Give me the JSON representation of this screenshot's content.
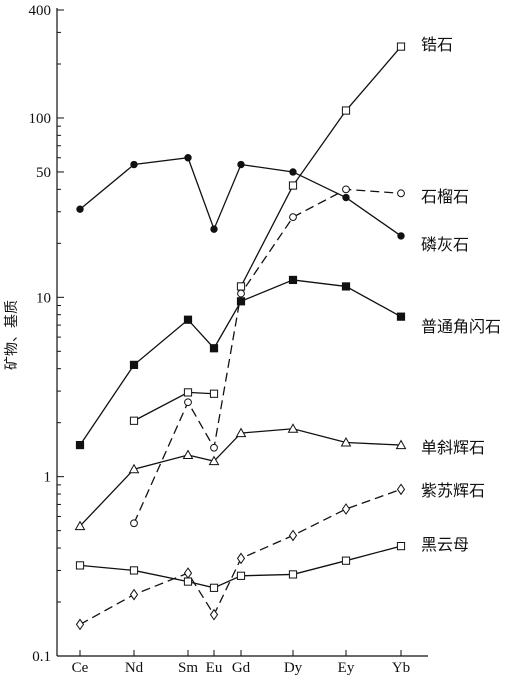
{
  "chart_data": {
    "type": "line",
    "title": "",
    "xlabel": "",
    "ylabel": "矿物、基质",
    "y_scale": "log",
    "ylim": [
      0.1,
      400
    ],
    "y_ticks": [
      {
        "value": 400,
        "label": "400"
      },
      {
        "value": 100,
        "label": "100"
      },
      {
        "value": 50,
        "label": "50"
      },
      {
        "value": 10,
        "label": "10"
      },
      {
        "value": 1,
        "label": "1"
      },
      {
        "value": 0.1,
        "label": "0.1"
      }
    ],
    "categories": [
      "Ce",
      "Nd",
      "Sm",
      "Eu",
      "Gd",
      "Dy",
      "Ey",
      "Yb"
    ],
    "grid": false,
    "legend": "labels placed at right end of each series",
    "series": [
      {
        "name": "锆石",
        "marker": "square-open",
        "line": "solid",
        "values": [
          null,
          null,
          null,
          null,
          11.5,
          42,
          110,
          250
        ]
      },
      {
        "name": "石榴石",
        "marker": "circle-open",
        "line": "dashed",
        "values": [
          null,
          0.55,
          2.6,
          1.45,
          10.5,
          28,
          40,
          38
        ]
      },
      {
        "name": "磷灰石",
        "marker": "circle-filled",
        "line": "solid",
        "values": [
          31,
          55,
          60,
          24,
          55,
          50,
          36,
          22
        ]
      },
      {
        "name": "普通角闪石",
        "marker": "square-filled",
        "line": "solid",
        "values": [
          1.5,
          4.2,
          7.5,
          5.2,
          9.5,
          12.5,
          11.5,
          7.8
        ]
      },
      {
        "name": "单斜辉石",
        "marker": "triangle-open",
        "line": "solid",
        "values": [
          0.53,
          1.1,
          1.32,
          1.22,
          1.75,
          1.85,
          1.55,
          1.5
        ]
      },
      {
        "name": "紫苏辉石",
        "marker": "diamond-open",
        "line": "dashed",
        "values": [
          0.15,
          0.22,
          0.29,
          0.17,
          0.35,
          0.47,
          0.66,
          0.85
        ]
      },
      {
        "name": "黑云母",
        "marker": "square-open",
        "line": "solid",
        "values": [
          0.32,
          0.3,
          0.26,
          0.24,
          0.28,
          0.285,
          0.34,
          0.41
        ]
      },
      {
        "name": "",
        "marker": "square-open",
        "line": "solid",
        "values": [
          null,
          2.05,
          2.95,
          2.9,
          null,
          null,
          null,
          null
        ]
      }
    ]
  }
}
